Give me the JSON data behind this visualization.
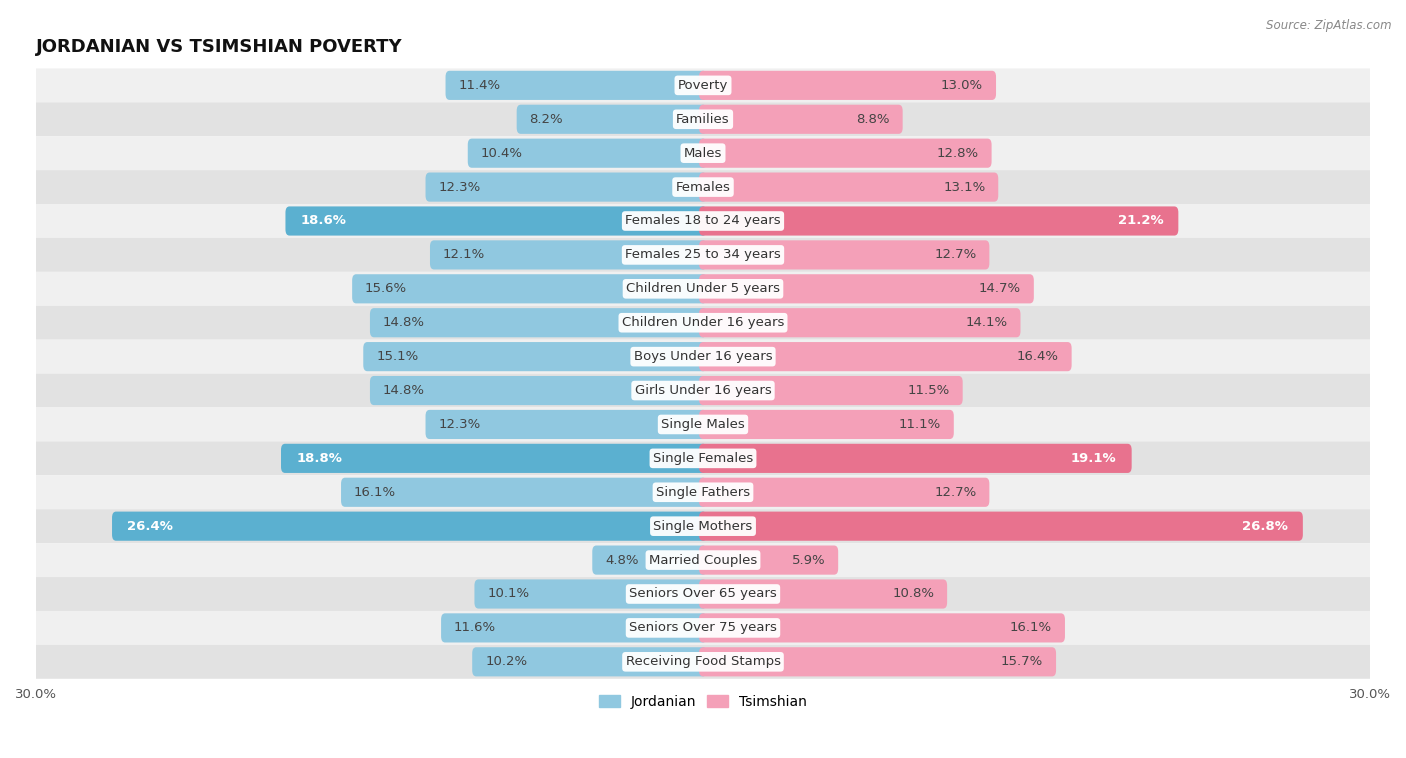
{
  "title": "JORDANIAN VS TSIMSHIAN POVERTY",
  "source": "Source: ZipAtlas.com",
  "categories": [
    "Poverty",
    "Families",
    "Males",
    "Females",
    "Females 18 to 24 years",
    "Females 25 to 34 years",
    "Children Under 5 years",
    "Children Under 16 years",
    "Boys Under 16 years",
    "Girls Under 16 years",
    "Single Males",
    "Single Females",
    "Single Fathers",
    "Single Mothers",
    "Married Couples",
    "Seniors Over 65 years",
    "Seniors Over 75 years",
    "Receiving Food Stamps"
  ],
  "jordanian": [
    11.4,
    8.2,
    10.4,
    12.3,
    18.6,
    12.1,
    15.6,
    14.8,
    15.1,
    14.8,
    12.3,
    18.8,
    16.1,
    26.4,
    4.8,
    10.1,
    11.6,
    10.2
  ],
  "tsimshian": [
    13.0,
    8.8,
    12.8,
    13.1,
    21.2,
    12.7,
    14.7,
    14.1,
    16.4,
    11.5,
    11.1,
    19.1,
    12.7,
    26.8,
    5.9,
    10.8,
    16.1,
    15.7
  ],
  "jordanian_color": "#90c8e0",
  "tsimshian_color": "#f4a0b8",
  "highlight_jordanian_color": "#5bb0d0",
  "highlight_tsimshian_color": "#e8728e",
  "background_color": "#ffffff",
  "row_color_light": "#f0f0f0",
  "row_color_dark": "#e2e2e2",
  "xlim": 30.0,
  "bar_height": 0.5,
  "label_fontsize": 9.5,
  "title_fontsize": 13,
  "legend_fontsize": 10,
  "highlight_threshold": 18.0
}
